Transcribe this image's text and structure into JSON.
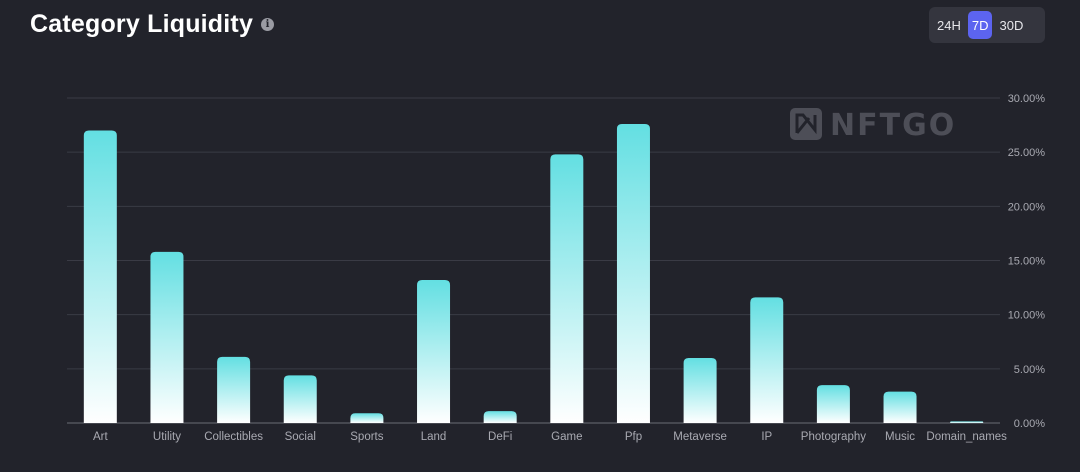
{
  "header": {
    "title": "Category Liquidity",
    "info_icon": "info-icon"
  },
  "range_selector": {
    "options": [
      "24H",
      "7D",
      "30D"
    ],
    "selected": "7D"
  },
  "watermark": {
    "text": "NFTGO",
    "icon": "nftgo-logo-icon"
  },
  "colors": {
    "background": "#22232b",
    "bar_top": "#63dfe2",
    "bar_bottom": "#ffffff",
    "grid": "#3a3b45",
    "accent": "#5c64f0"
  },
  "chart_data": {
    "type": "bar",
    "categories": [
      "Art",
      "Utility",
      "Collectibles",
      "Social",
      "Sports",
      "Land",
      "DeFi",
      "Game",
      "Pfp",
      "Metaverse",
      "IP",
      "Photography",
      "Music",
      "Domain_names"
    ],
    "values": [
      27.0,
      15.8,
      6.1,
      4.4,
      0.9,
      13.2,
      1.1,
      24.8,
      27.6,
      6.0,
      11.6,
      3.5,
      2.9,
      0.15
    ],
    "ylim": [
      0,
      30
    ],
    "yticks": [
      "0.00%",
      "5.00%",
      "10.00%",
      "15.00%",
      "20.00%",
      "25.00%",
      "30.00%"
    ],
    "ytick_values": [
      0,
      5,
      10,
      15,
      20,
      25,
      30
    ],
    "y_axis_position": "right",
    "grid": true
  }
}
